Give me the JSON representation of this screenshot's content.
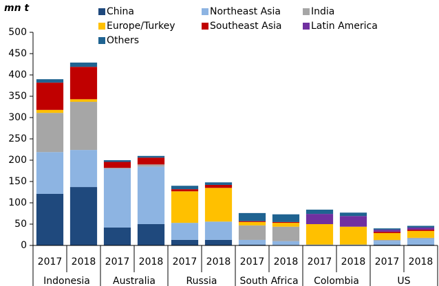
{
  "chart_data": {
    "type": "stacked_bar",
    "y_label": "mn t",
    "groups": [
      "Indonesia",
      "Australia",
      "Russia",
      "South Africa",
      "Colombia",
      "US"
    ],
    "categories": [
      "2017",
      "2018",
      "2017",
      "2018",
      "2017",
      "2018",
      "2017",
      "2018",
      "2017",
      "2018",
      "2017",
      "2018"
    ],
    "series": [
      {
        "name": "China",
        "color": "#1f497d",
        "values": [
          121,
          137,
          42,
          50,
          13,
          13,
          2,
          1,
          0,
          0,
          2,
          2
        ]
      },
      {
        "name": "Northeast Asia",
        "color": "#8db4e2",
        "values": [
          98,
          87,
          138,
          135,
          40,
          43,
          11,
          9,
          2,
          2,
          9,
          14
        ]
      },
      {
        "name": "India",
        "color": "#a6a6a6",
        "values": [
          92,
          113,
          2,
          5,
          0,
          0,
          34,
          34,
          0,
          0,
          2,
          2
        ]
      },
      {
        "name": "Europe/Turkey",
        "color": "#ffc000",
        "values": [
          7,
          6,
          0,
          0,
          74,
          79,
          8,
          9,
          48,
          42,
          16,
          16
        ]
      },
      {
        "name": "Southeast Asia",
        "color": "#c00000",
        "values": [
          64,
          76,
          14,
          16,
          5,
          7,
          2,
          2,
          0,
          0,
          3,
          3
        ]
      },
      {
        "name": "Latin America",
        "color": "#7030a0",
        "values": [
          0,
          0,
          0,
          0,
          0,
          0,
          0,
          0,
          24,
          25,
          5,
          5
        ]
      },
      {
        "name": "Others",
        "color": "#1f6391",
        "values": [
          8,
          10,
          4,
          4,
          8,
          6,
          19,
          18,
          10,
          8,
          3,
          4
        ]
      }
    ],
    "ylim": [
      0,
      500
    ],
    "yticks": [
      0,
      50,
      100,
      150,
      200,
      250,
      300,
      350,
      400,
      450,
      500
    ],
    "grid": false,
    "legend": "top"
  }
}
